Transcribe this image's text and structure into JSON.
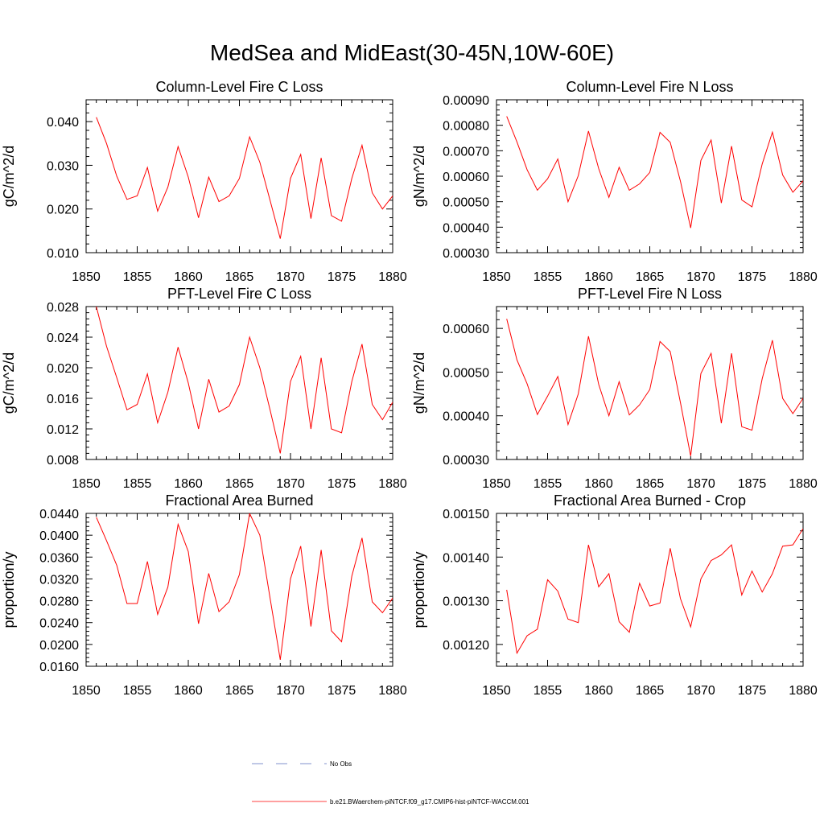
{
  "title": "MedSea and MidEast(30-45N,10W-60E)",
  "chart_data": [
    {
      "type": "line",
      "title": "Column-Level Fire C Loss",
      "ylabel": "gC/m^2/d",
      "xlim": [
        1850,
        1880
      ],
      "ylim": [
        0.01,
        0.045
      ],
      "xticks": [
        "1850",
        "1855",
        "1860",
        "1865",
        "1870",
        "1875",
        "1880"
      ],
      "yticks": [
        "0.010",
        "0.020",
        "0.030",
        "0.040"
      ],
      "x": [
        1851,
        1852,
        1853,
        1854,
        1855,
        1856,
        1857,
        1858,
        1859,
        1860,
        1861,
        1862,
        1863,
        1864,
        1865,
        1866,
        1867,
        1868,
        1869,
        1870,
        1871,
        1872,
        1873,
        1874,
        1875,
        1876,
        1877,
        1878,
        1879,
        1880
      ],
      "series": [
        {
          "color": "#ff0000",
          "values": [
            0.041,
            0.035,
            0.0275,
            0.0222,
            0.023,
            0.0295,
            0.0195,
            0.025,
            0.0343,
            0.0273,
            0.018,
            0.0273,
            0.0217,
            0.023,
            0.027,
            0.0365,
            0.0307,
            0.022,
            0.0132,
            0.027,
            0.0325,
            0.0178,
            0.0317,
            0.0185,
            0.0172,
            0.027,
            0.0346,
            0.0237,
            0.02,
            0.023
          ]
        }
      ]
    },
    {
      "type": "line",
      "title": "Column-Level Fire N Loss",
      "ylabel": "gN/m^2/d",
      "xlim": [
        1850,
        1880
      ],
      "ylim": [
        0.0003,
        0.0009
      ],
      "xticks": [
        "1850",
        "1855",
        "1860",
        "1865",
        "1870",
        "1875",
        "1880"
      ],
      "yticks": [
        "0.00030",
        "0.00040",
        "0.00050",
        "0.00060",
        "0.00070",
        "0.00080",
        "0.00090"
      ],
      "x": [
        1851,
        1852,
        1853,
        1854,
        1855,
        1856,
        1857,
        1858,
        1859,
        1860,
        1861,
        1862,
        1863,
        1864,
        1865,
        1866,
        1867,
        1868,
        1869,
        1870,
        1871,
        1872,
        1873,
        1874,
        1875,
        1876,
        1877,
        1878,
        1879,
        1880
      ],
      "series": [
        {
          "color": "#ff0000",
          "values": [
            0.000835,
            0.000735,
            0.000625,
            0.000545,
            0.00059,
            0.000668,
            0.0005,
            0.000602,
            0.000777,
            0.00063,
            0.000517,
            0.000635,
            0.000545,
            0.00057,
            0.000615,
            0.000772,
            0.000733,
            0.00058,
            0.000397,
            0.000662,
            0.000742,
            0.000495,
            0.000718,
            0.000507,
            0.00048,
            0.000648,
            0.000773,
            0.000605,
            0.000537,
            0.000582
          ]
        }
      ]
    },
    {
      "type": "line",
      "title": "PFT-Level Fire C Loss",
      "ylabel": "gC/m^2/d",
      "xlim": [
        1850,
        1880
      ],
      "ylim": [
        0.008,
        0.028
      ],
      "xticks": [
        "1850",
        "1855",
        "1860",
        "1865",
        "1870",
        "1875",
        "1880"
      ],
      "yticks": [
        "0.008",
        "0.012",
        "0.016",
        "0.020",
        "0.024",
        "0.028"
      ],
      "x": [
        1851,
        1852,
        1853,
        1854,
        1855,
        1856,
        1857,
        1858,
        1859,
        1860,
        1861,
        1862,
        1863,
        1864,
        1865,
        1866,
        1867,
        1868,
        1869,
        1870,
        1871,
        1872,
        1873,
        1874,
        1875,
        1876,
        1877,
        1878,
        1879,
        1880
      ],
      "series": [
        {
          "color": "#ff0000",
          "values": [
            0.028,
            0.0228,
            0.0187,
            0.0145,
            0.0152,
            0.0192,
            0.0128,
            0.0168,
            0.0227,
            0.018,
            0.012,
            0.0185,
            0.0142,
            0.015,
            0.0178,
            0.024,
            0.02,
            0.0145,
            0.0088,
            0.0182,
            0.0215,
            0.012,
            0.0213,
            0.012,
            0.0115,
            0.0182,
            0.0231,
            0.0152,
            0.0132,
            0.0155
          ]
        }
      ]
    },
    {
      "type": "line",
      "title": "PFT-Level Fire N Loss",
      "ylabel": "gN/m^2/d",
      "xlim": [
        1850,
        1880
      ],
      "ylim": [
        0.0003,
        0.00065
      ],
      "xticks": [
        "1850",
        "1855",
        "1860",
        "1865",
        "1870",
        "1875",
        "1880"
      ],
      "yticks": [
        "0.00030",
        "0.00040",
        "0.00050",
        "0.00060"
      ],
      "x": [
        1851,
        1852,
        1853,
        1854,
        1855,
        1856,
        1857,
        1858,
        1859,
        1860,
        1861,
        1862,
        1863,
        1864,
        1865,
        1866,
        1867,
        1868,
        1869,
        1870,
        1871,
        1872,
        1873,
        1874,
        1875,
        1876,
        1877,
        1878,
        1879,
        1880
      ],
      "series": [
        {
          "color": "#ff0000",
          "values": [
            0.000622,
            0.000528,
            0.000473,
            0.000403,
            0.000445,
            0.00049,
            0.00038,
            0.00045,
            0.000582,
            0.000472,
            0.0004,
            0.000478,
            0.000402,
            0.000425,
            0.00046,
            0.00057,
            0.000547,
            0.00043,
            0.000308,
            0.000497,
            0.000543,
            0.000383,
            0.000543,
            0.000375,
            0.000367,
            0.000485,
            0.000573,
            0.00044,
            0.000405,
            0.00044
          ]
        }
      ]
    },
    {
      "type": "line",
      "title": "Fractional Area Burned",
      "ylabel": "proportion/y",
      "xlim": [
        1850,
        1880
      ],
      "ylim": [
        0.016,
        0.044
      ],
      "xticks": [
        "1850",
        "1855",
        "1860",
        "1865",
        "1870",
        "1875",
        "1880"
      ],
      "yticks": [
        "0.0160",
        "0.0200",
        "0.0240",
        "0.0280",
        "0.0320",
        "0.0360",
        "0.0400",
        "0.0440"
      ],
      "x": [
        1851,
        1852,
        1853,
        1854,
        1855,
        1856,
        1857,
        1858,
        1859,
        1860,
        1861,
        1862,
        1863,
        1864,
        1865,
        1866,
        1867,
        1868,
        1869,
        1870,
        1871,
        1872,
        1873,
        1874,
        1875,
        1876,
        1877,
        1878,
        1879,
        1880
      ],
      "series": [
        {
          "color": "#ff0000",
          "values": [
            0.0433,
            0.039,
            0.0345,
            0.0275,
            0.0275,
            0.0352,
            0.0255,
            0.0305,
            0.042,
            0.037,
            0.0238,
            0.033,
            0.026,
            0.0278,
            0.0328,
            0.044,
            0.04,
            0.0285,
            0.0172,
            0.032,
            0.038,
            0.0233,
            0.0373,
            0.0225,
            0.0205,
            0.0325,
            0.0395,
            0.0278,
            0.0258,
            0.0285
          ]
        }
      ]
    },
    {
      "type": "line",
      "title": "Fractional Area Burned - Crop",
      "ylabel": "proportion/y",
      "xlim": [
        1850,
        1880
      ],
      "ylim": [
        0.00115,
        0.0015
      ],
      "xticks": [
        "1850",
        "1855",
        "1860",
        "1865",
        "1870",
        "1875",
        "1880"
      ],
      "yticks": [
        "0.00120",
        "0.00130",
        "0.00140",
        "0.00150"
      ],
      "x": [
        1851,
        1852,
        1853,
        1854,
        1855,
        1856,
        1857,
        1858,
        1859,
        1860,
        1861,
        1862,
        1863,
        1864,
        1865,
        1866,
        1867,
        1868,
        1869,
        1870,
        1871,
        1872,
        1873,
        1874,
        1875,
        1876,
        1877,
        1878,
        1879,
        1880
      ],
      "series": [
        {
          "color": "#ff0000",
          "values": [
            0.001325,
            0.00118,
            0.00122,
            0.001235,
            0.001348,
            0.001322,
            0.001258,
            0.00125,
            0.001428,
            0.001332,
            0.001362,
            0.001252,
            0.001228,
            0.00134,
            0.001288,
            0.001295,
            0.00142,
            0.001305,
            0.00124,
            0.00135,
            0.001392,
            0.001405,
            0.001428,
            0.001313,
            0.001368,
            0.00132,
            0.001362,
            0.001425,
            0.001428,
            0.001465
          ]
        }
      ]
    }
  ],
  "legend": [
    {
      "label": "No Obs",
      "color": "#5a6fbf",
      "style": "dashed"
    },
    {
      "label": "b.e21.BWaerchem-piNTCF.f09_g17.CMIP6-hist-piNTCF-WACCM.001",
      "color": "#ff0000",
      "style": "solid"
    }
  ]
}
